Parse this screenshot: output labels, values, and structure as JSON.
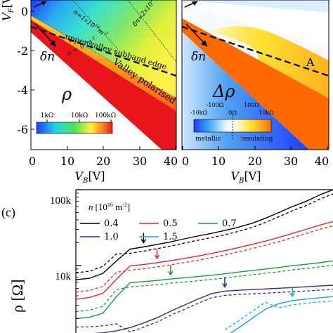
{
  "panel_a": {
    "symbol": "ρ",
    "ylabel_main": "V",
    "ylabel_sub": "F",
    "ylabel_unit": "[V]",
    "xlabel_main": "V",
    "xlabel_sub": "B",
    "xlabel_unit": "[V]",
    "xticks": [
      "0",
      "10",
      "20",
      "30",
      "40"
    ],
    "yticks": [
      "0",
      "-2",
      "-4",
      "-6"
    ],
    "dn_label": "δn",
    "ann_n0": "n = 0 m",
    "ann_n0_exp": "-2",
    "ann_upper_valley": "upper valley subband edge",
    "ann_valley_pol": "Valley polarised",
    "ann_n1": "n=1x10",
    "ann_n1_exp": "16",
    "ann_n1_unit": "m",
    "ann_n1_unit_exp": "-2",
    "ann_dn": "δn=2x10",
    "ann_dn_exp": "16",
    "ann_dn_unit": "m",
    "ann_dn_unit_exp": "-2",
    "colorbar_ticks": [
      "1kΩ",
      "10kΩ",
      "100kΩ"
    ],
    "colors": {
      "blue": "#1f3cff",
      "cyan": "#21d4e8",
      "green": "#52e05a",
      "yellow": "#fff23a",
      "orange": "#ff8a1f",
      "red": "#e8151b"
    }
  },
  "panel_b": {
    "symbol": "Δρ",
    "xlabel_main": "V",
    "xlabel_sub": "B",
    "xlabel_unit": "[V]",
    "xticks": [
      "0",
      "10",
      "20",
      "30",
      "40"
    ],
    "dn_label": "δn",
    "region_label": "A",
    "colorbar_ticks_top": [
      "-100Ω",
      "100Ω"
    ],
    "colorbar_ticks_bottom": [
      "-10kΩ",
      "0Ω",
      "10kΩ"
    ],
    "colorbar_left": "metallic",
    "colorbar_right": "insulating"
  },
  "panel_c": {
    "label": "(c)",
    "legend_title": "n [10",
    "legend_title_exp": "16",
    "legend_title_unit": " m",
    "legend_title_unit_exp": "-2",
    "legend_title_close": "]",
    "ylabel": "ρ [Ω]",
    "yticks": [
      "100k",
      "10k"
    ]
  },
  "chart_data": {
    "type": "line",
    "title": "(c)",
    "ylabel": "ρ [Ω]",
    "yscale": "log",
    "series": [
      {
        "name": "0.4",
        "color": "#000000",
        "values": [
          6500,
          6800,
          7900,
          11500,
          16500,
          17600,
          19000,
          20500,
          22500,
          24500,
          26500,
          29000,
          32000,
          36000,
          42000,
          50000,
          60000,
          70000,
          85000,
          100000
        ]
      },
      {
        "name": "0.5",
        "color": "#e8262b",
        "values": [
          3600,
          3800,
          4300,
          6600,
          9900,
          10300,
          10900,
          11600,
          12400,
          13300,
          14400,
          15700,
          17200,
          19000,
          21000,
          23500,
          26500,
          30000,
          34000,
          38000
        ]
      },
      {
        "name": "0.7",
        "color": "#1f9a3a",
        "values": [
          2000,
          2080,
          2350,
          3900,
          5950,
          6150,
          6350,
          6650,
          6900,
          7150,
          7450,
          7800,
          8200,
          8600,
          9000,
          9450,
          9950,
          10400,
          10900,
          11500
        ]
      },
      {
        "name": "1.0",
        "color": "#2a2f8f",
        "values": [
          1250,
          1260,
          1300,
          1380,
          1520,
          1750,
          2050,
          2500,
          3000,
          3600,
          4250,
          4600,
          4720,
          4820,
          4920,
          5020,
          5130,
          5250,
          5380,
          5500
        ]
      },
      {
        "name": "1.5",
        "color": "#1aa4e0",
        "values": [
          null,
          null,
          null,
          null,
          null,
          null,
          null,
          null,
          null,
          null,
          null,
          1150,
          1500,
          2000,
          2650,
          3150,
          3450,
          3620,
          3760,
          3900
        ]
      }
    ]
  }
}
